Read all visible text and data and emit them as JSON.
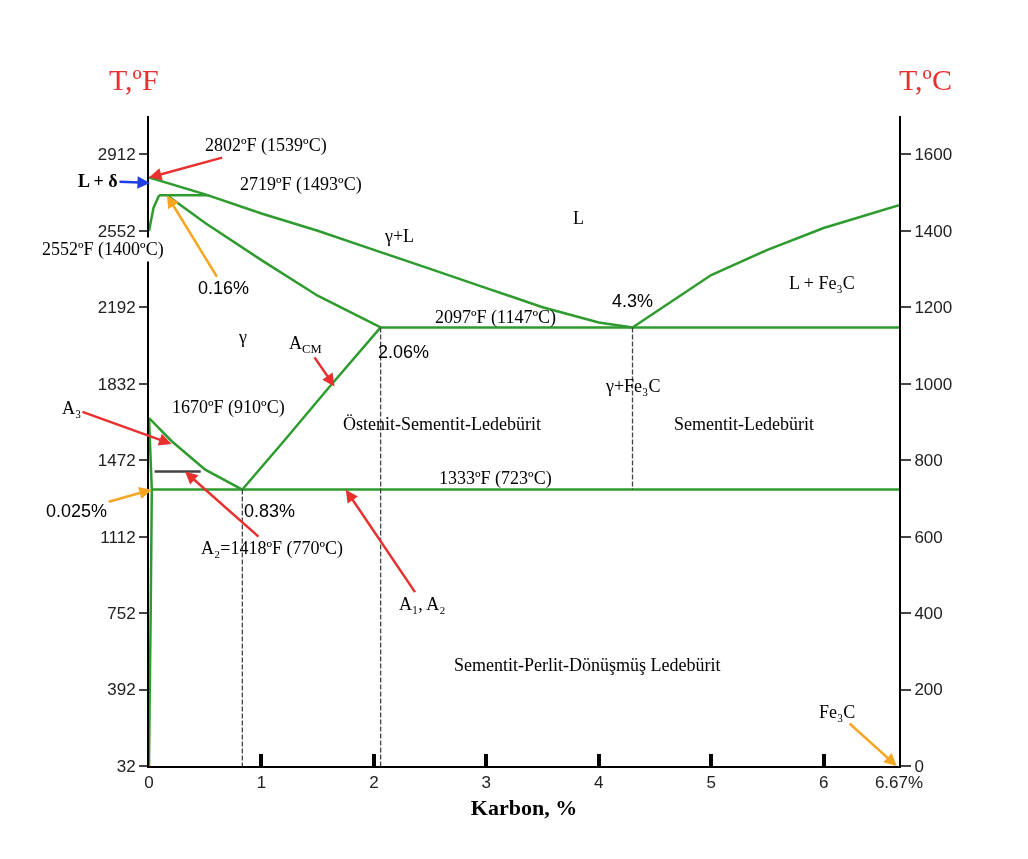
{
  "chart_data": {
    "type": "line",
    "xlabel": "Karbon, %",
    "ylabel": "T,ºF",
    "y2label": "T,ºC",
    "xlim": [
      0,
      6.67
    ],
    "xticks": [
      0,
      1,
      2,
      3,
      4,
      5,
      6,
      {
        "value": 6.67,
        "label": "6.67%"
      }
    ],
    "ylim": [
      32,
      3092
    ],
    "yticks": [
      32,
      392,
      752,
      1112,
      1472,
      1832,
      2192,
      2552,
      2912
    ],
    "y2lim": [
      0,
      1700
    ],
    "y2ticks": [
      0,
      200,
      400,
      600,
      800,
      1000,
      1200,
      1400,
      1600
    ],
    "grid": false,
    "legend": false,
    "marker": "none",
    "series": [
      {
        "axis": "y2",
        "color": "#2e9b2e",
        "x": [
          0,
          0.5,
          1,
          1.5,
          2,
          2.5,
          3,
          3.5,
          4,
          4.3
        ],
        "values": [
          1539,
          1495,
          1445,
          1400,
          1350,
          1300,
          1250,
          1200,
          1160,
          1147
        ]
      },
      {
        "axis": "y2",
        "color": "#2e9b2e",
        "x": [
          4.3,
          5,
          5.5,
          6,
          6.67
        ],
        "values": [
          1147,
          1284,
          1350,
          1407,
          1467
        ]
      },
      {
        "axis": "y2",
        "color": "#2e9b2e",
        "x": [
          0.09,
          0.53
        ],
        "values": [
          1493,
          1493
        ]
      },
      {
        "axis": "y2",
        "color": "#2e9b2e",
        "x": [
          0,
          0.04,
          0.09
        ],
        "values": [
          1400,
          1460,
          1493
        ]
      },
      {
        "axis": "y2",
        "color": "#2e9b2e",
        "x": [
          0.16,
          0.5,
          1,
          1.5,
          2.06
        ],
        "values": [
          1493,
          1420,
          1323,
          1230,
          1147
        ]
      },
      {
        "axis": "y2",
        "color": "#2e9b2e",
        "x": [
          2.06,
          6.67
        ],
        "values": [
          1147,
          1147
        ]
      },
      {
        "axis": "y2",
        "color": "#2e9b2e",
        "x": [
          0.83,
          1.2,
          1.6,
          2.06
        ],
        "values": [
          723,
          850,
          990,
          1147
        ]
      },
      {
        "axis": "y2",
        "color": "#2e9b2e",
        "x": [
          0,
          0.2,
          0.5,
          0.83
        ],
        "values": [
          910,
          850,
          775,
          723
        ]
      },
      {
        "axis": "y2",
        "color": "#2e9b2e",
        "x": [
          0.025,
          6.67
        ],
        "values": [
          723,
          723
        ]
      },
      {
        "axis": "y2",
        "color": "#2e9b2e",
        "x": [
          0,
          0.025,
          0.015,
          0.005,
          0
        ],
        "values": [
          910,
          723,
          400,
          150,
          0
        ]
      },
      {
        "axis": "y2",
        "color": "#444444",
        "x": [
          0.05,
          0.46
        ],
        "values": [
          770,
          770
        ]
      },
      {
        "axis": "y2",
        "color": "#444444",
        "line_style": "dashed",
        "x": [
          0.83,
          0.83
        ],
        "values": [
          723,
          0
        ]
      },
      {
        "axis": "y2",
        "color": "#444444",
        "line_style": "dashed",
        "x": [
          2.06,
          2.06
        ],
        "values": [
          1147,
          0
        ]
      },
      {
        "axis": "y2",
        "color": "#444444",
        "line_style": "dashed",
        "x": [
          4.3,
          4.3
        ],
        "values": [
          1147,
          723
        ]
      }
    ],
    "annotations": [
      {
        "text": "2802ºF (1539ºC)",
        "x": 0,
        "y": 2802
      },
      "L + δ",
      "2719ºF (1493ºC)",
      {
        "text": "2552ºF (1400ºC)",
        "x": 0,
        "y": 2552
      },
      {
        "text": "0.16%",
        "x": 0.16,
        "y": 2719
      },
      {
        "text": "2097ºF (1147ºC)",
        "x": 3.08,
        "y": 2097
      },
      {
        "text": "4.3%",
        "x": 4.3,
        "y": 2097
      },
      {
        "text": "2.06%",
        "x": 2.06,
        "y": 2097
      },
      {
        "text": "A$_{CM}$",
        "x": 1.65,
        "y": 1819
      },
      {
        "text": "1670ºF (910ºC)",
        "x": 0,
        "y": 1670
      },
      {
        "text": "A₃",
        "x": 0.2,
        "y": 1548
      },
      {
        "text": "0.025%",
        "x": 0.025,
        "y": 1333
      },
      {
        "text": "A₂=1418ºF (770ºC)",
        "x": 0.32,
        "y": 1418
      },
      {
        "text": "0.83%",
        "x": 0.83,
        "y": 1333
      },
      {
        "text": "1333ºF (723ºC)",
        "x": 3.08,
        "y": 1333
      },
      {
        "text": "A₁, A₂",
        "x": 1.75,
        "y": 1333
      },
      "Fe₃C",
      "L",
      "γ+L",
      "γ",
      "L + Fe₃C",
      "γ+Fe₃C",
      "Östenit-Sementit-Ledebürit",
      "Sementit-Ledebürit",
      "Sementit-Perlit-Dönüşmüş Ledebürit"
    ]
  }
}
